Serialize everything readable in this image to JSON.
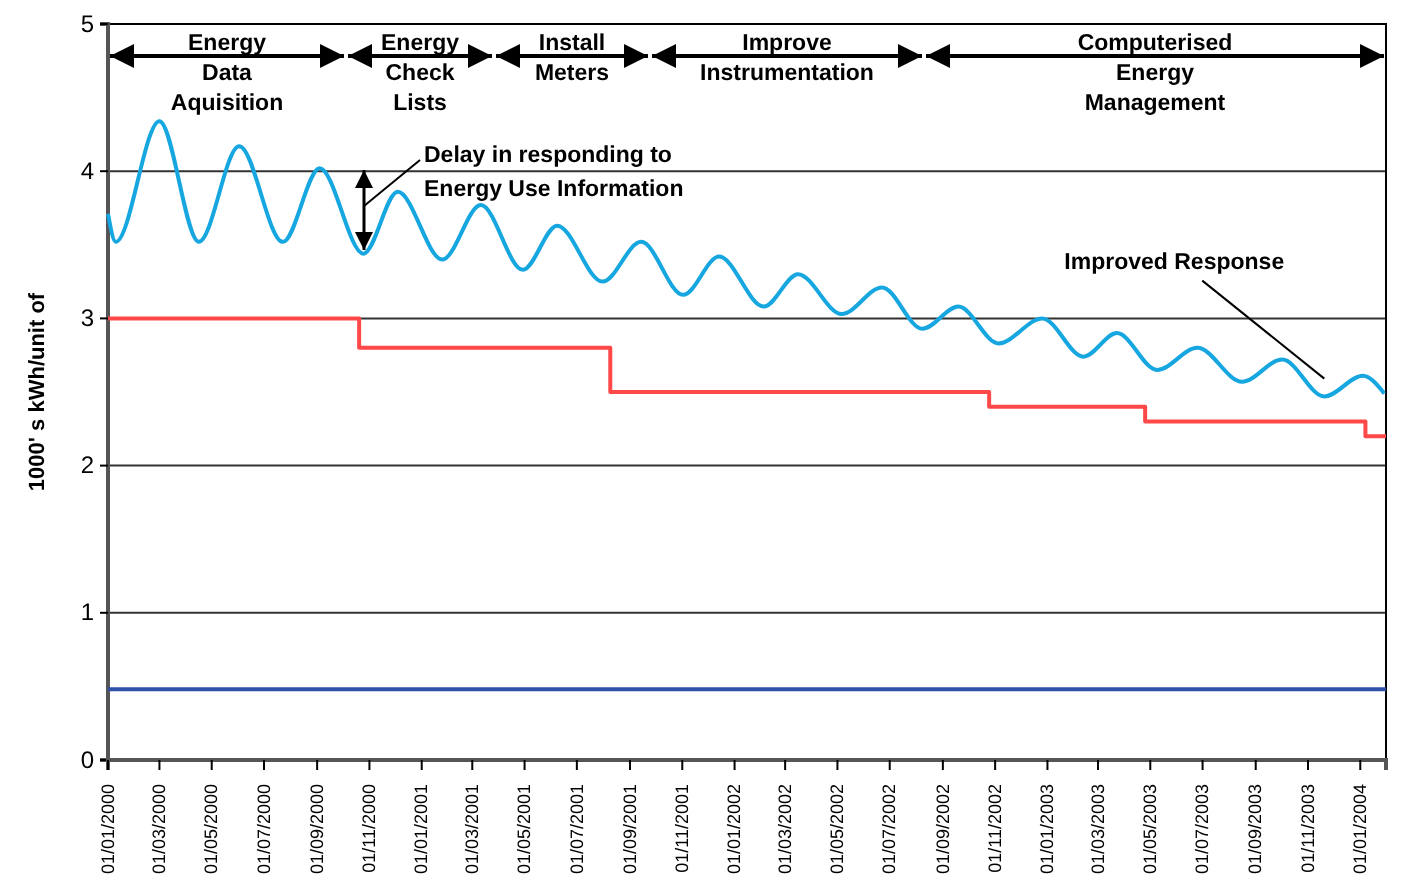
{
  "chart_data": {
    "type": "line",
    "ylabel": "1000' s kWh/unit of",
    "xlim": [
      "2000-01-01",
      "2004-01-31"
    ],
    "ylim": [
      0,
      5
    ],
    "yticks": [
      0,
      1,
      2,
      3,
      4,
      5
    ],
    "xticks": [
      {
        "value": "2000-01-01",
        "label": "01/01/2000"
      },
      {
        "value": "2000-03-01",
        "label": "01/03/2000"
      },
      {
        "value": "2000-05-01",
        "label": "01/05/2000"
      },
      {
        "value": "2000-07-01",
        "label": "01/07/2000"
      },
      {
        "value": "2000-09-01",
        "label": "01/09/2000"
      },
      {
        "value": "2000-11-01",
        "label": "01/11/2000"
      },
      {
        "value": "2001-01-01",
        "label": "01/01/2001"
      },
      {
        "value": "2001-03-01",
        "label": "01/03/2001"
      },
      {
        "value": "2001-05-01",
        "label": "01/05/2001"
      },
      {
        "value": "2001-07-01",
        "label": "01/07/2001"
      },
      {
        "value": "2001-09-01",
        "label": "01/09/2001"
      },
      {
        "value": "2001-11-01",
        "label": "01/11/2001"
      },
      {
        "value": "2002-01-01",
        "label": "01/01/2002"
      },
      {
        "value": "2002-03-01",
        "label": "01/03/2002"
      },
      {
        "value": "2002-05-01",
        "label": "01/05/2002"
      },
      {
        "value": "2002-07-01",
        "label": "01/07/2002"
      },
      {
        "value": "2002-09-01",
        "label": "01/09/2002"
      },
      {
        "value": "2002-11-01",
        "label": "01/11/2002"
      },
      {
        "value": "2003-01-01",
        "label": "01/01/2003"
      },
      {
        "value": "2003-03-01",
        "label": "01/03/2003"
      },
      {
        "value": "2003-05-01",
        "label": "01/05/2003"
      },
      {
        "value": "2003-07-01",
        "label": "01/07/2003"
      },
      {
        "value": "2003-09-01",
        "label": "01/09/2003"
      },
      {
        "value": "2003-11-01",
        "label": "01/11/2003"
      },
      {
        "value": "2004-01-01",
        "label": "01/01/2004"
      }
    ],
    "grid": "y",
    "series": [
      {
        "color": "#16a6e0",
        "x": [
          "2000-01-01",
          "2000-01-10",
          "2000-03-01",
          "2000-04-16",
          "2000-06-02",
          "2000-07-23",
          "2000-09-04",
          "2000-10-25",
          "2000-12-04",
          "2001-01-25",
          "2001-03-11",
          "2001-04-29",
          "2001-06-08",
          "2001-07-31",
          "2001-09-14",
          "2001-11-02",
          "2001-12-14",
          "2002-02-04",
          "2002-03-16",
          "2002-05-06",
          "2002-06-22",
          "2002-08-08",
          "2002-09-19",
          "2002-11-05",
          "2002-12-26",
          "2003-02-12",
          "2003-03-23",
          "2003-05-09",
          "2003-06-25",
          "2003-08-16",
          "2003-10-02",
          "2003-11-20",
          "2004-01-04",
          "2004-01-29"
        ],
        "values": [
          3.71,
          3.52,
          4.34,
          3.52,
          4.17,
          3.52,
          4.02,
          3.44,
          3.86,
          3.4,
          3.77,
          3.33,
          3.63,
          3.25,
          3.52,
          3.16,
          3.42,
          3.08,
          3.3,
          3.03,
          3.21,
          2.93,
          3.08,
          2.83,
          3.0,
          2.74,
          2.9,
          2.65,
          2.8,
          2.57,
          2.72,
          2.47,
          2.61,
          2.49
        ]
      },
      {
        "type": "step",
        "color": "#ff4848",
        "x": [
          "2000-01-01",
          "2000-10-20",
          "2001-08-09",
          "2002-10-25",
          "2003-04-25",
          "2004-01-07",
          "2004-01-31"
        ],
        "values": [
          3.0,
          2.8,
          2.5,
          2.4,
          2.3,
          2.2,
          2.2
        ]
      },
      {
        "color": "#3050a8",
        "x": [
          "2000-01-01",
          "2004-01-31"
        ],
        "values": [
          0.48,
          0.48
        ]
      }
    ],
    "annotations": [
      "Energy\nData\nAquisition",
      "Energy\nCheck\nLists",
      "Install\nMeters",
      "Improve\nInstrumentation",
      "Computerised\nEnergy\nManagement",
      "Delay in responding to\nEnergy Use Information",
      {
        "text": "Improved Response",
        "x": "2003-11-27",
        "y": 2.55
      }
    ]
  }
}
